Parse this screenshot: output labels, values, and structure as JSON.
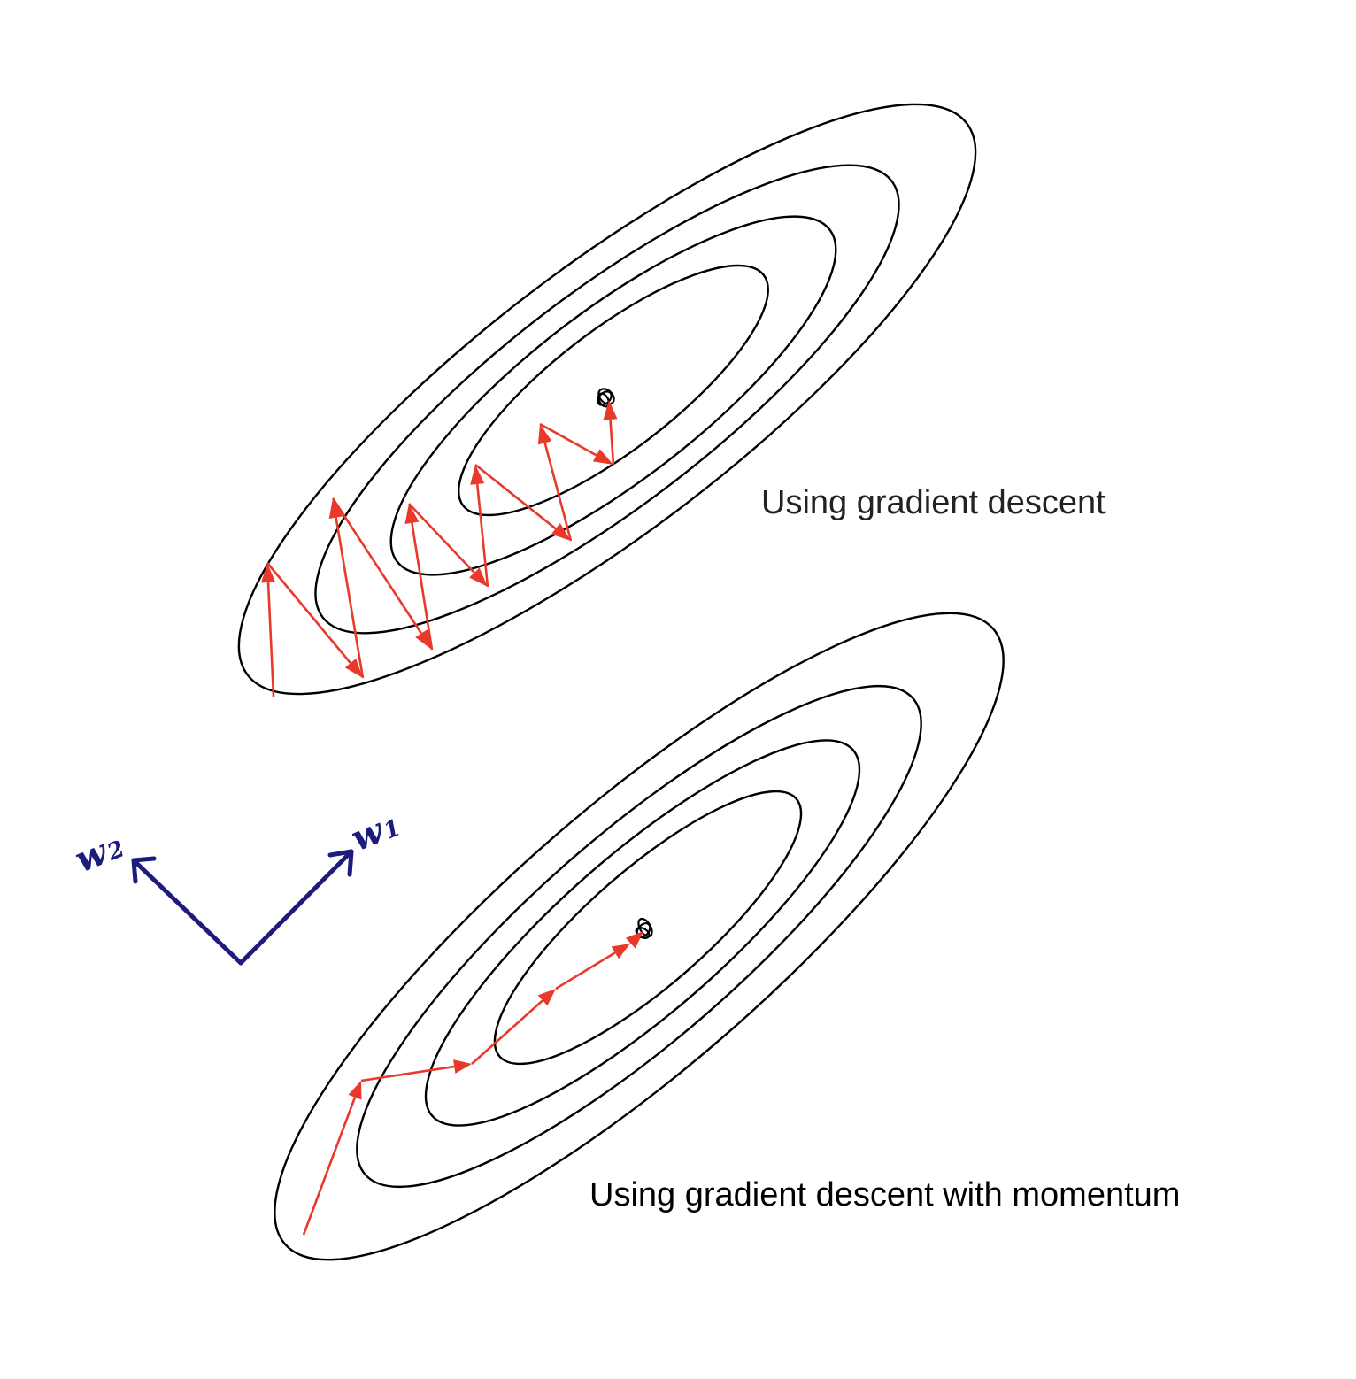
{
  "captions": {
    "gradient_descent": "Using gradient descent",
    "gradient_descent_momentum": "Using gradient descent with momentum"
  },
  "axes": {
    "w1": {
      "letter": "w",
      "subscript": "1"
    },
    "w2": {
      "letter": "w",
      "subscript": "2"
    }
  },
  "colors": {
    "contour": "#000000",
    "path": "#e8392a",
    "axes": "#1c1b7e"
  },
  "plots": [
    {
      "name": "gradient-descent",
      "contour_count": 4,
      "path_steps": 10,
      "behavior": "oscillating zig-zag"
    },
    {
      "name": "gradient-descent-with-momentum",
      "contour_count": 4,
      "path_steps": 6,
      "behavior": "smooth direct"
    }
  ]
}
